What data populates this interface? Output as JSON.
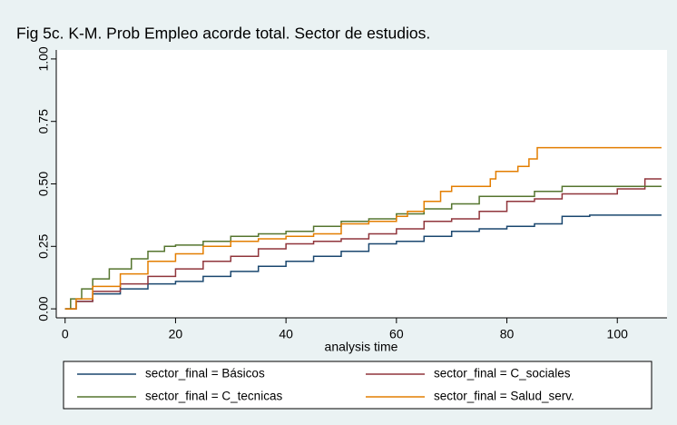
{
  "chart_data": {
    "type": "line",
    "step": "post",
    "title": "Fig 5c.  K-M. Prob Empleo acorde total. Sector de estudios.",
    "xlabel": "analysis time",
    "xlim": [
      -1.6,
      109
    ],
    "xticks": [
      0,
      20,
      40,
      60,
      80,
      100
    ],
    "ylim": [
      -0.036,
      1.036
    ],
    "yticks": [
      {
        "value": 0,
        "label": "0.00"
      },
      {
        "value": 0.25,
        "label": "0.25"
      },
      {
        "value": 0.5,
        "label": "0.50"
      },
      {
        "value": 0.75,
        "label": "0.75"
      },
      {
        "value": 1,
        "label": "1.00"
      }
    ],
    "series": [
      {
        "name": "sector_final = Básicos",
        "color": "#1a476f",
        "x": [
          0,
          2,
          5,
          10,
          15,
          20,
          25,
          30,
          35,
          40,
          45,
          50,
          55,
          60,
          65,
          70,
          75,
          80,
          85,
          90,
          95,
          108
        ],
        "values": [
          0,
          0.03,
          0.06,
          0.08,
          0.1,
          0.11,
          0.13,
          0.15,
          0.17,
          0.19,
          0.21,
          0.23,
          0.26,
          0.27,
          0.29,
          0.31,
          0.32,
          0.33,
          0.34,
          0.37,
          0.375,
          0.375
        ]
      },
      {
        "name": "sector_final = C_sociales",
        "color": "#90353b",
        "x": [
          0,
          2,
          5,
          10,
          15,
          20,
          25,
          30,
          35,
          40,
          45,
          50,
          55,
          60,
          65,
          70,
          75,
          80,
          85,
          90,
          100,
          105,
          108
        ],
        "values": [
          0,
          0.03,
          0.07,
          0.1,
          0.13,
          0.16,
          0.19,
          0.21,
          0.24,
          0.26,
          0.27,
          0.28,
          0.3,
          0.32,
          0.35,
          0.36,
          0.39,
          0.43,
          0.44,
          0.46,
          0.48,
          0.52,
          0.52
        ]
      },
      {
        "name": "sector_final = C_tecnicas",
        "color": "#55752f",
        "x": [
          0,
          1,
          3,
          5,
          8,
          12,
          15,
          18,
          20,
          25,
          30,
          35,
          40,
          45,
          50,
          55,
          60,
          65,
          70,
          75,
          85,
          90,
          108
        ],
        "values": [
          0,
          0.04,
          0.08,
          0.12,
          0.16,
          0.2,
          0.23,
          0.25,
          0.255,
          0.27,
          0.29,
          0.3,
          0.31,
          0.33,
          0.35,
          0.36,
          0.38,
          0.4,
          0.42,
          0.45,
          0.47,
          0.49,
          0.49
        ]
      },
      {
        "name": "sector_final = Salud_serv.",
        "color": "#e37e00",
        "x": [
          0,
          2,
          5,
          10,
          15,
          20,
          25,
          30,
          35,
          40,
          45,
          50,
          55,
          60,
          62,
          65,
          68,
          70,
          77,
          78,
          82,
          84,
          85.5,
          108
        ],
        "values": [
          0,
          0.04,
          0.09,
          0.14,
          0.19,
          0.22,
          0.25,
          0.27,
          0.28,
          0.29,
          0.3,
          0.34,
          0.35,
          0.37,
          0.39,
          0.43,
          0.47,
          0.49,
          0.52,
          0.55,
          0.57,
          0.6,
          0.645,
          0.645
        ]
      }
    ]
  }
}
